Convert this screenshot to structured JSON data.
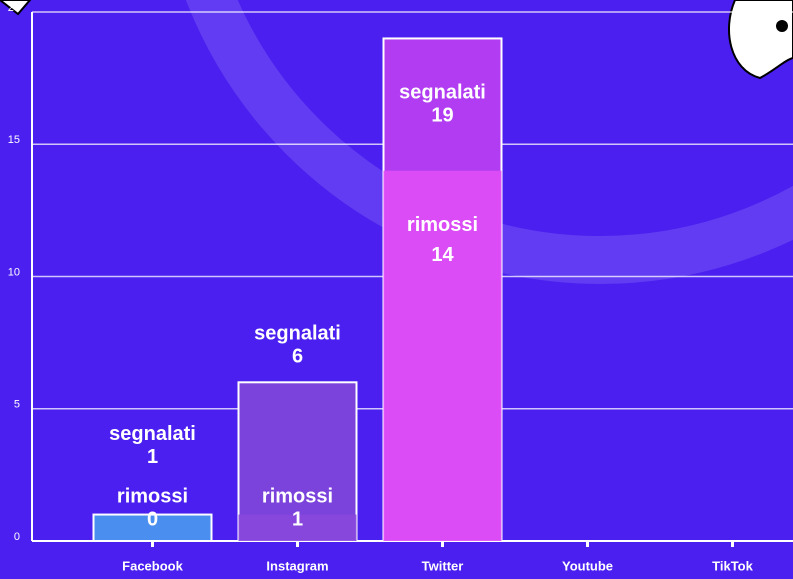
{
  "chart_data": {
    "type": "bar",
    "categories": [
      "Facebook",
      "Instagram",
      "Twitter",
      "Youtube",
      "TikTok"
    ],
    "series": [
      {
        "name": "segnalati",
        "values": [
          1,
          6,
          19,
          null,
          null
        ],
        "colors": [
          "#4a8ff0",
          "#7b43dc",
          "#b13cf2",
          "#b13cf2",
          "#b13cf2"
        ]
      },
      {
        "name": "rimossi",
        "values": [
          0,
          1,
          14,
          null,
          null
        ],
        "colors": [
          "#4a8ff0",
          "#8a48dc",
          "#e04cf6",
          "#e04cf6",
          "#e04cf6"
        ]
      }
    ],
    "ylim": [
      0,
      20
    ],
    "yticks": [
      0,
      5,
      10,
      15,
      20
    ],
    "grid": true
  }
}
